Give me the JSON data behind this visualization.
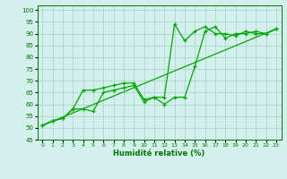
{
  "xlabel": "Humidité relative (%)",
  "background_color": "#d4f0ec",
  "grid_color": "#a8d8cc",
  "line_color": "#00aa00",
  "xlim": [
    -0.5,
    23.5
  ],
  "ylim": [
    45,
    102
  ],
  "yticks": [
    45,
    50,
    55,
    60,
    65,
    70,
    75,
    80,
    85,
    90,
    95,
    100
  ],
  "xticks": [
    0,
    1,
    2,
    3,
    4,
    5,
    6,
    7,
    8,
    9,
    10,
    11,
    12,
    13,
    14,
    15,
    16,
    17,
    18,
    19,
    20,
    21,
    22,
    23
  ],
  "series1_x": [
    0,
    1,
    2,
    3,
    4,
    5,
    6,
    7,
    8,
    9,
    10,
    11,
    12,
    13,
    14,
    15,
    16,
    17,
    18,
    19,
    20,
    21,
    22,
    23
  ],
  "series1_y": [
    51,
    53,
    54,
    58,
    66,
    66,
    67,
    68,
    69,
    69,
    62,
    63,
    63,
    94,
    87,
    91,
    93,
    90,
    90,
    89,
    91,
    90,
    90,
    92
  ],
  "series2_x": [
    0,
    1,
    2,
    3,
    4,
    5,
    6,
    7,
    8,
    9,
    10,
    11,
    12,
    13,
    14,
    15,
    16,
    17,
    18,
    19,
    20,
    21,
    22,
    23
  ],
  "series2_y": [
    51,
    53,
    54,
    58,
    58,
    57,
    65,
    66,
    67,
    68,
    61,
    63,
    60,
    63,
    63,
    76,
    91,
    93,
    88,
    90,
    90,
    91,
    90,
    92
  ],
  "series3_x": [
    0,
    23
  ],
  "series3_y": [
    51,
    92
  ]
}
